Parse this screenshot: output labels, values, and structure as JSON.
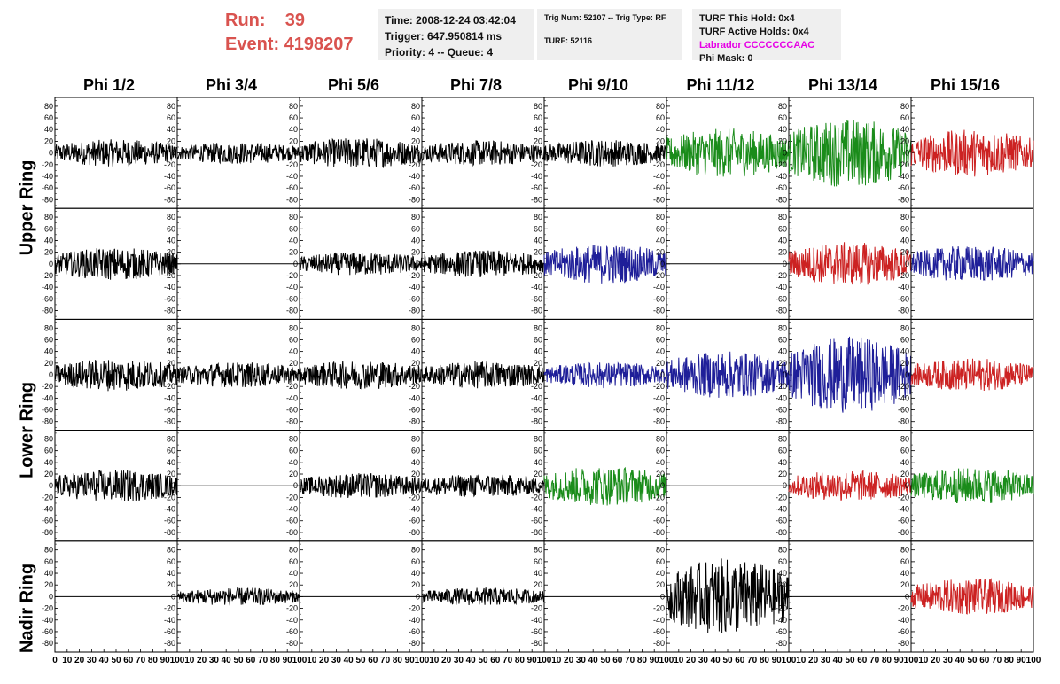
{
  "header": {
    "run_label": "Run:",
    "run_value": "39",
    "event_label": "Event:",
    "event_value": "4198207",
    "time": "Time: 2008-12-24 03:42:04",
    "trigger": "Trigger: 647.950814 ms",
    "priority": "Priority: 4 -- Queue: 4",
    "trig_num": "Trig Num: 52107 -- Trig Type: RF",
    "turf": "TURF: 52116",
    "turf_this_hold": "TURF This Hold: 0x4",
    "turf_active_holds": "TURF Active Holds: 0x4",
    "labrador": "Labrador CCCCCCCAAC",
    "phi_mask": "Phi Mask: 0"
  },
  "columns": [
    "Phi 1/2",
    "Phi 3/4",
    "Phi 5/6",
    "Phi 7/8",
    "Phi 9/10",
    "Phi 11/12",
    "Phi 13/14",
    "Phi 15/16"
  ],
  "rings": [
    "Upper Ring",
    "Lower Ring",
    "Nadir Ring"
  ],
  "colors": {
    "black": "#000000",
    "green": "#1a8c1a",
    "blue": "#1f1f99",
    "red": "#cc2222",
    "magenta": "#e600e6",
    "run": "#d9534f"
  },
  "chart_data": {
    "type": "line",
    "xlim": [
      0,
      100
    ],
    "ylim": [
      -95,
      95
    ],
    "y_ticks": [
      -80,
      -60,
      -40,
      -20,
      0,
      20,
      40,
      60,
      80
    ],
    "x_ticks": [
      0,
      10,
      20,
      30,
      40,
      50,
      60,
      70,
      80,
      90,
      100
    ],
    "x_tick_labels_first": [
      "0",
      "10",
      "20",
      "30",
      "40",
      "50",
      "60",
      "70",
      "80",
      "90",
      "100"
    ],
    "x_tick_labels_other": [
      "10",
      "20",
      "30",
      "40",
      "50",
      "60",
      "70",
      "80",
      "90",
      "100"
    ],
    "grid": false,
    "panels": [
      [
        {
          "color": "black",
          "amp": 15,
          "flat": false
        },
        {
          "color": "black",
          "amp": 12,
          "flat": false
        },
        {
          "color": "black",
          "amp": 17,
          "flat": false
        },
        {
          "color": "black",
          "amp": 14,
          "flat": false
        },
        {
          "color": "black",
          "amp": 15,
          "flat": false
        },
        {
          "color": "green",
          "amp": 27,
          "flat": false
        },
        {
          "color": "green",
          "amp": 38,
          "flat": false
        },
        {
          "color": "red",
          "amp": 26,
          "flat": false
        }
      ],
      [
        {
          "color": "black",
          "amp": 18,
          "flat": false
        },
        {
          "color": "black",
          "amp": 0,
          "flat": true
        },
        {
          "color": "black",
          "amp": 13,
          "flat": false
        },
        {
          "color": "black",
          "amp": 15,
          "flat": false
        },
        {
          "color": "blue",
          "amp": 22,
          "flat": false
        },
        {
          "color": "black",
          "amp": 0,
          "flat": true
        },
        {
          "color": "red",
          "amp": 24,
          "flat": false
        },
        {
          "color": "blue",
          "amp": 20,
          "flat": false
        }
      ],
      [
        {
          "color": "black",
          "amp": 18,
          "flat": false
        },
        {
          "color": "black",
          "amp": 14,
          "flat": false
        },
        {
          "color": "black",
          "amp": 16,
          "flat": false
        },
        {
          "color": "black",
          "amp": 15,
          "flat": false
        },
        {
          "color": "blue",
          "amp": 14,
          "flat": false
        },
        {
          "color": "blue",
          "amp": 26,
          "flat": false
        },
        {
          "color": "blue",
          "amp": 42,
          "flat": false
        },
        {
          "color": "red",
          "amp": 18,
          "flat": false
        }
      ],
      [
        {
          "color": "black",
          "amp": 18,
          "flat": false
        },
        {
          "color": "black",
          "amp": 0,
          "flat": true
        },
        {
          "color": "black",
          "amp": 14,
          "flat": false
        },
        {
          "color": "black",
          "amp": 13,
          "flat": false
        },
        {
          "color": "green",
          "amp": 22,
          "flat": false
        },
        {
          "color": "black",
          "amp": 0,
          "flat": true
        },
        {
          "color": "red",
          "amp": 17,
          "flat": false
        },
        {
          "color": "green",
          "amp": 20,
          "flat": false
        }
      ],
      [
        {
          "color": "black",
          "amp": 0,
          "flat": true
        },
        {
          "color": "black",
          "amp": 10,
          "flat": false
        },
        {
          "color": "black",
          "amp": 0,
          "flat": true
        },
        {
          "color": "black",
          "amp": 10,
          "flat": false
        },
        {
          "color": "black",
          "amp": 0,
          "flat": true
        },
        {
          "color": "black",
          "amp": 42,
          "flat": false
        },
        {
          "color": "black",
          "amp": 0,
          "flat": true
        },
        {
          "color": "red",
          "amp": 20,
          "flat": false
        }
      ]
    ]
  }
}
